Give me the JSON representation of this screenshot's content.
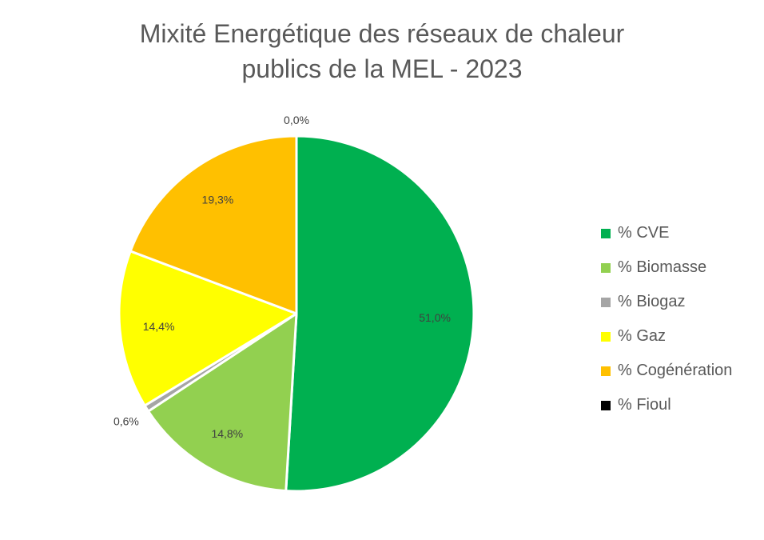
{
  "chart_data": {
    "type": "pie",
    "title_lines": [
      "Mixité Energétique des réseaux de chaleur",
      "publics de la MEL - 2023"
    ],
    "categories": [
      "% CVE",
      "% Biomasse",
      "% Biogaz",
      "% Gaz",
      "% Cogénération",
      "% Fioul"
    ],
    "values": [
      51.0,
      14.8,
      0.6,
      14.4,
      19.3,
      0.0
    ],
    "data_labels": [
      "51,0%",
      "14,8%",
      "0,6%",
      "14,4%",
      "19,3%",
      "0,0%"
    ],
    "colors": [
      "#00B050",
      "#92D050",
      "#A5A5A5",
      "#FFFF00",
      "#FFC000",
      "#000000"
    ],
    "legend_position": "right",
    "start_angle": "top, clockwise"
  }
}
